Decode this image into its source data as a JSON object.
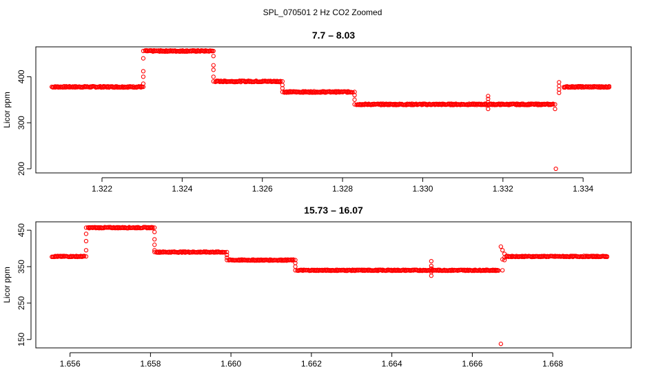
{
  "figure_title": "SPL_070501  2 Hz CO2 Zoomed",
  "marker_color": "#ff0000",
  "chart_data": [
    {
      "type": "scatter",
      "title": "7.7 – 8.03",
      "xlabel": "",
      "ylabel": "Licor ppm",
      "xlim": [
        1.32035,
        1.3352
      ],
      "ylim": [
        191,
        465
      ],
      "x_ticks": [
        1.322,
        1.324,
        1.326,
        1.328,
        1.33,
        1.332,
        1.334
      ],
      "x_tick_labels": [
        "1.322",
        "1.324",
        "1.326",
        "1.328",
        "1.330",
        "1.332",
        "1.334"
      ],
      "y_ticks": [
        200,
        300,
        400
      ],
      "y_tick_labels": [
        "200",
        "300",
        "400"
      ],
      "x_range": [
        1.32075,
        1.33465
      ],
      "segments": [
        {
          "x0": 1.32075,
          "x1": 1.323,
          "y": 378
        },
        {
          "x0": 1.32308,
          "x1": 1.32475,
          "y": 456
        },
        {
          "x0": 1.32483,
          "x1": 1.32645,
          "y": 390
        },
        {
          "x0": 1.32655,
          "x1": 1.32825,
          "y": 367
        },
        {
          "x0": 1.32835,
          "x1": 1.33325,
          "y": 340
        },
        {
          "x0": 1.33352,
          "x1": 1.33465,
          "y": 378
        }
      ],
      "transitions": [
        {
          "x": 1.32303,
          "y": [
            378,
            385,
            400,
            412,
            440,
            456
          ]
        },
        {
          "x": 1.32478,
          "y": [
            456,
            445,
            425,
            415,
            400,
            390
          ]
        },
        {
          "x": 1.3265,
          "y": [
            390,
            382,
            375,
            367
          ]
        },
        {
          "x": 1.3283,
          "y": [
            367,
            360,
            350,
            340
          ]
        },
        {
          "x": 1.33163,
          "y": [
            358,
            352,
            345,
            338,
            330
          ]
        },
        {
          "x": 1.3333,
          "y": [
            340,
            330
          ]
        },
        {
          "x": 1.3334,
          "y": [
            388,
            380,
            372,
            365
          ]
        }
      ],
      "outliers": [
        {
          "x": 1.33332,
          "y": 200
        }
      ]
    },
    {
      "type": "scatter",
      "title": "15.73 – 16.07",
      "xlabel": "",
      "ylabel": "Licor ppm",
      "xlim": [
        1.65515,
        1.66995
      ],
      "ylim": [
        127,
        473
      ],
      "x_ticks": [
        1.656,
        1.658,
        1.66,
        1.662,
        1.664,
        1.666,
        1.668
      ],
      "x_tick_labels": [
        "1.656",
        "1.658",
        "1.660",
        "1.662",
        "1.664",
        "1.666",
        "1.668"
      ],
      "y_ticks": [
        150,
        250,
        350,
        450
      ],
      "y_tick_labels": [
        "150",
        "250",
        "350",
        "450"
      ],
      "x_range": [
        1.65555,
        1.66935
      ],
      "segments": [
        {
          "x0": 1.65555,
          "x1": 1.65635,
          "y": 378
        },
        {
          "x0": 1.65645,
          "x1": 1.65805,
          "y": 457
        },
        {
          "x0": 1.65815,
          "x1": 1.65985,
          "y": 390
        },
        {
          "x0": 1.65995,
          "x1": 1.66155,
          "y": 368
        },
        {
          "x0": 1.66165,
          "x1": 1.66665,
          "y": 340
        },
        {
          "x0": 1.66685,
          "x1": 1.66935,
          "y": 378
        }
      ],
      "transitions": [
        {
          "x": 1.6564,
          "y": [
            378,
            395,
            420,
            440,
            457
          ]
        },
        {
          "x": 1.6581,
          "y": [
            457,
            445,
            425,
            410,
            395,
            390
          ]
        },
        {
          "x": 1.6599,
          "y": [
            390,
            382,
            375,
            368
          ]
        },
        {
          "x": 1.6616,
          "y": [
            368,
            360,
            350,
            340
          ]
        },
        {
          "x": 1.66498,
          "y": [
            365,
            352,
            345,
            335,
            325
          ]
        },
        {
          "x": 1.66675,
          "y": [
            340,
            370,
            395
          ]
        },
        {
          "x": 1.6668,
          "y": [
            385,
            375,
            368
          ]
        }
      ],
      "outliers": [
        {
          "x": 1.66671,
          "y": 405
        },
        {
          "x": 1.66671,
          "y": 138
        }
      ]
    }
  ]
}
